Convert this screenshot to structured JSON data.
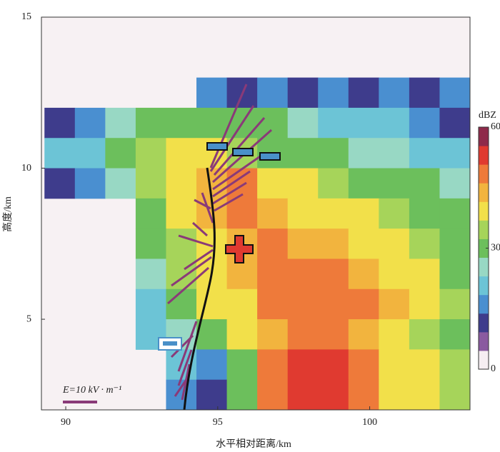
{
  "chart_data": {
    "type": "heatmap",
    "x_label": "水平相对距离/km",
    "y_label": "高度/km",
    "xlim": [
      89.2,
      103.3
    ],
    "ylim": [
      2,
      15
    ],
    "xticks": [
      90,
      95,
      100
    ],
    "yticks": [
      5,
      10,
      15
    ],
    "x_edges": [
      89.3,
      90.3,
      91.3,
      92.3,
      93.3,
      94.3,
      95.3,
      96.3,
      97.3,
      98.3,
      99.3,
      100.3,
      101.3,
      102.3,
      103.3
    ],
    "y_edges": [
      15,
      14,
      13,
      12,
      11,
      10,
      9,
      8,
      7,
      6,
      5,
      4,
      3,
      2
    ],
    "z": [
      [
        null,
        null,
        null,
        null,
        null,
        null,
        null,
        null,
        null,
        null,
        null,
        null,
        null,
        null
      ],
      [
        null,
        null,
        null,
        null,
        null,
        null,
        null,
        null,
        null,
        null,
        null,
        null,
        null,
        null
      ],
      [
        null,
        null,
        null,
        null,
        null,
        15,
        10,
        15,
        10,
        15,
        10,
        15,
        10,
        15
      ],
      [
        10,
        15,
        25,
        30,
        30,
        32,
        30,
        28,
        25,
        22,
        20,
        18,
        15,
        12
      ],
      [
        20,
        22,
        28,
        35,
        38,
        40,
        35,
        32,
        30,
        28,
        25,
        25,
        22,
        20
      ],
      [
        12,
        15,
        25,
        35,
        42,
        45,
        48,
        42,
        38,
        35,
        32,
        30,
        28,
        25
      ],
      [
        null,
        null,
        null,
        30,
        38,
        44,
        48,
        45,
        42,
        40,
        38,
        35,
        32,
        30
      ],
      [
        null,
        null,
        null,
        28,
        36,
        42,
        46,
        48,
        46,
        44,
        42,
        40,
        36,
        32
      ],
      [
        null,
        null,
        null,
        25,
        35,
        40,
        44,
        48,
        50,
        49,
        46,
        42,
        38,
        32
      ],
      [
        null,
        null,
        null,
        22,
        32,
        38,
        40,
        48,
        50,
        50,
        48,
        44,
        38,
        34
      ],
      [
        null,
        null,
        null,
        18,
        25,
        32,
        38,
        46,
        50,
        50,
        46,
        40,
        36,
        32
      ],
      [
        null,
        null,
        null,
        null,
        20,
        15,
        32,
        48,
        54,
        55,
        50,
        40,
        38,
        36
      ],
      [
        null,
        null,
        null,
        null,
        15,
        12,
        30,
        48,
        55,
        54,
        48,
        38,
        40,
        34
      ]
    ],
    "colorbar": {
      "label": "dBZ",
      "lim": [
        0,
        60
      ],
      "ticks": [
        0,
        30,
        60
      ],
      "colors": [
        "#f6eef2",
        "#8a5aa0",
        "#3e3c8c",
        "#4a8fd0",
        "#6cc4d6",
        "#98d8c4",
        "#6cbf5c",
        "#a6d45a",
        "#f2e04a",
        "#f2b43e",
        "#ee7a3a",
        "#e03a30",
        "#8e2a4a"
      ]
    },
    "annotation": "E=10  kV · m⁻¹"
  }
}
